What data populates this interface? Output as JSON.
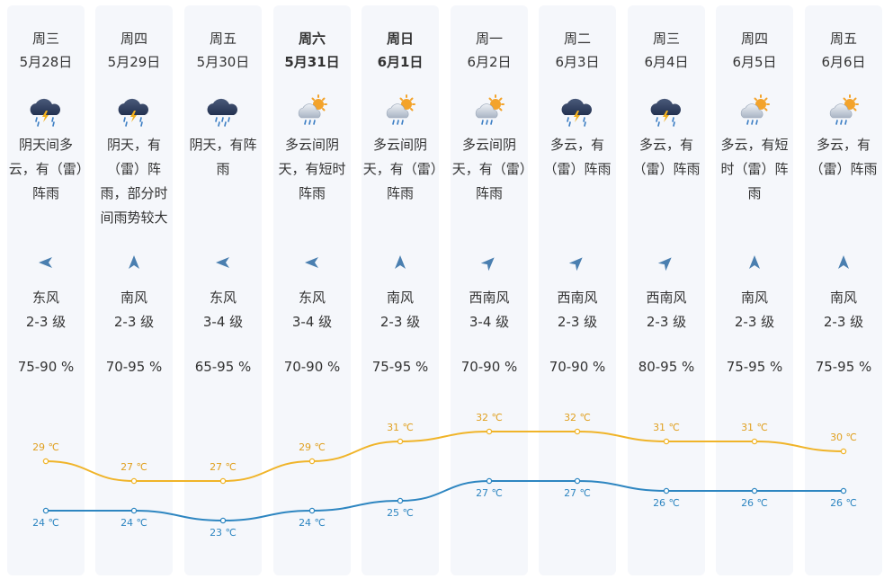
{
  "days": [
    {
      "weekday": "周三",
      "date": "5月28日",
      "bold": false,
      "icon": "thunderstorm-icon",
      "desc": "阴天间多云，有（雷）阵雨",
      "wind_dir_icon": "wind-from-east-icon",
      "wind_dir": "E",
      "wind_name": "东风",
      "wind_level": "2-3 级",
      "humidity": "75-90 %",
      "high": 29,
      "high_label": "29 ℃",
      "low": 24,
      "low_label": "24 ℃"
    },
    {
      "weekday": "周四",
      "date": "5月29日",
      "bold": false,
      "icon": "thunderstorm-icon",
      "desc": "阴天，有（雷）阵雨，部分时间雨势较大",
      "wind_dir_icon": "wind-from-south-icon",
      "wind_dir": "S",
      "wind_name": "南风",
      "wind_level": "2-3 级",
      "humidity": "70-95 %",
      "high": 27,
      "high_label": "27 ℃",
      "low": 24,
      "low_label": "24 ℃"
    },
    {
      "weekday": "周五",
      "date": "5月30日",
      "bold": false,
      "icon": "rain-icon",
      "desc": "阴天，有阵雨",
      "wind_dir_icon": "wind-from-east-icon",
      "wind_dir": "E",
      "wind_name": "东风",
      "wind_level": "3-4 级",
      "humidity": "65-95 %",
      "high": 27,
      "high_label": "27 ℃",
      "low": 23,
      "low_label": "23 ℃"
    },
    {
      "weekday": "周六",
      "date": "5月31日",
      "bold": true,
      "icon": "sun-cloud-rain-icon",
      "desc": "多云间阴天，有短时阵雨",
      "wind_dir_icon": "wind-from-east-icon",
      "wind_dir": "E",
      "wind_name": "东风",
      "wind_level": "3-4 级",
      "humidity": "70-90 %",
      "high": 29,
      "high_label": "29 ℃",
      "low": 24,
      "low_label": "24 ℃"
    },
    {
      "weekday": "周日",
      "date": "6月1日",
      "bold": true,
      "icon": "sun-cloud-rain-icon",
      "desc": "多云间阴天，有（雷）阵雨",
      "wind_dir_icon": "wind-from-south-icon",
      "wind_dir": "S",
      "wind_name": "南风",
      "wind_level": "2-3 级",
      "humidity": "75-95 %",
      "high": 31,
      "high_label": "31 ℃",
      "low": 25,
      "low_label": "25 ℃"
    },
    {
      "weekday": "周一",
      "date": "6月2日",
      "bold": false,
      "icon": "sun-cloud-rain-icon",
      "desc": "多云间阴天，有（雷）阵雨",
      "wind_dir_icon": "wind-from-southwest-icon",
      "wind_dir": "SW",
      "wind_name": "西南风",
      "wind_level": "3-4 级",
      "humidity": "70-90 %",
      "high": 32,
      "high_label": "32 ℃",
      "low": 27,
      "low_label": "27 ℃"
    },
    {
      "weekday": "周二",
      "date": "6月3日",
      "bold": false,
      "icon": "thunderstorm-icon",
      "desc": "多云，有（雷）阵雨",
      "wind_dir_icon": "wind-from-southwest-icon",
      "wind_dir": "SW",
      "wind_name": "西南风",
      "wind_level": "2-3 级",
      "humidity": "70-90 %",
      "high": 32,
      "high_label": "32 ℃",
      "low": 27,
      "low_label": "27 ℃"
    },
    {
      "weekday": "周三",
      "date": "6月4日",
      "bold": false,
      "icon": "thunderstorm-icon",
      "desc": "多云，有（雷）阵雨",
      "wind_dir_icon": "wind-from-southwest-icon",
      "wind_dir": "SW",
      "wind_name": "西南风",
      "wind_level": "2-3 级",
      "humidity": "80-95 %",
      "high": 31,
      "high_label": "31 ℃",
      "low": 26,
      "low_label": "26 ℃"
    },
    {
      "weekday": "周四",
      "date": "6月5日",
      "bold": false,
      "icon": "sun-cloud-rain-icon",
      "desc": "多云，有短时（雷）阵雨",
      "wind_dir_icon": "wind-from-south-icon",
      "wind_dir": "S",
      "wind_name": "南风",
      "wind_level": "2-3 级",
      "humidity": "75-95 %",
      "high": 31,
      "high_label": "31 ℃",
      "low": 26,
      "low_label": "26 ℃"
    },
    {
      "weekday": "周五",
      "date": "6月6日",
      "bold": false,
      "icon": "sun-cloud-rain-icon",
      "desc": "多云，有（雷）阵雨",
      "wind_dir_icon": "wind-from-south-icon",
      "wind_dir": "S",
      "wind_name": "南风",
      "wind_level": "2-3 级",
      "humidity": "75-95 %",
      "high": 30,
      "high_label": "30 ℃",
      "low": 26,
      "low_label": "26 ℃"
    }
  ],
  "colors": {
    "high_line": "#f0b429",
    "low_line": "#2e86c1",
    "high_label": "#e0a020",
    "low_label": "#2e86c1",
    "column_bg": "#f5f7fb",
    "arrow": "#4a7fb0"
  }
}
